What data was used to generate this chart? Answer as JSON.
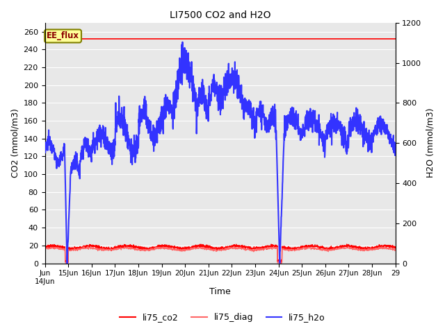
{
  "title": "LI7500 CO2 and H2O",
  "xlabel": "Time",
  "ylabel_left": "CO2 (mmol/m3)",
  "ylabel_right": "H2O (mmol/m3)",
  "ylim_left": [
    0,
    270
  ],
  "ylim_right": [
    0,
    1200
  ],
  "yticks_left": [
    0,
    20,
    40,
    60,
    80,
    100,
    120,
    140,
    160,
    180,
    200,
    220,
    240,
    260
  ],
  "yticks_right": [
    0,
    200,
    400,
    600,
    800,
    1000,
    1200
  ],
  "xtick_positions": [
    0,
    1,
    2,
    3,
    4,
    5,
    6,
    7,
    8,
    9,
    10,
    11,
    12,
    13,
    14,
    15
  ],
  "xtick_labels": [
    "Jun\n14Jun",
    "15Jun",
    "16Jun",
    "17Jun",
    "18Jun",
    "19Jun",
    "20Jun",
    "21Jun",
    "22Jun",
    "23Jun",
    "24Jun",
    "25Jun",
    "26Jun",
    "27Jun",
    "28Jun",
    "29"
  ],
  "annotation_text": "EE_flux",
  "annotation_color": "#8B0000",
  "annotation_bg": "#FFFF99",
  "annotation_border": "#808000",
  "fig_facecolor": "#FFFFFF",
  "plot_facecolor": "#E8E8E8",
  "grid_color": "#FFFFFF",
  "line_co2_color": "#FF0000",
  "line_diag_color": "#FF6666",
  "line_h2o_color": "#3333FF",
  "ee_flux_line_color": "#FF0000",
  "ee_flux_value": 252,
  "legend_entries": [
    "li75_co2",
    "li75_diag",
    "li75_h2o"
  ],
  "legend_colors": [
    "#FF0000",
    "#FF6666",
    "#3333FF"
  ],
  "xlim": [
    0,
    15
  ]
}
